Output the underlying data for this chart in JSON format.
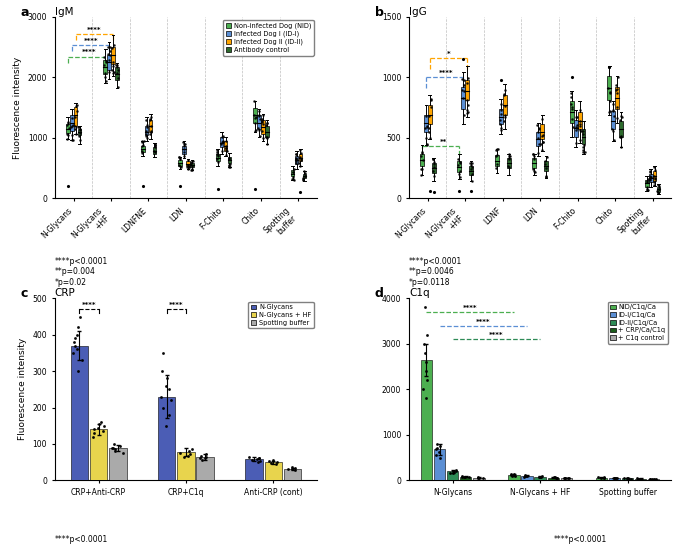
{
  "panel_a": {
    "title": "IgM",
    "ylabel": "Fluorescence intensity",
    "ylim": [
      0,
      3000
    ],
    "yticks": [
      0,
      1000,
      2000,
      3000
    ],
    "categories": [
      "N-Glycans",
      "N-Glycans\n+HF",
      "LDNFNE",
      "LDN",
      "F-Chito",
      "Chito",
      "Spotting\nbuffer"
    ],
    "keys": [
      "N-Glycans",
      "N-Glycans+HF",
      "LDNFNE",
      "LDN",
      "F-Chito",
      "Chito",
      "Spotting buffer"
    ],
    "box_data": {
      "N-Glycans": {
        "NID": {
          "q1": 1080,
          "med": 1150,
          "q3": 1230,
          "whislo": 980,
          "whishi": 1340,
          "fliers": [
            200
          ]
        },
        "IDI": {
          "q1": 1120,
          "med": 1250,
          "q3": 1370,
          "whislo": 960,
          "whishi": 1470,
          "fliers": []
        },
        "IDII": {
          "q1": 1200,
          "med": 1380,
          "q3": 1500,
          "whislo": 1060,
          "whishi": 1580,
          "fliers": []
        },
        "AC": {
          "q1": 1040,
          "med": 1090,
          "q3": 1140,
          "whislo": 900,
          "whishi": 1190,
          "fliers": []
        }
      },
      "N-Glycans+HF": {
        "NID": {
          "q1": 2060,
          "med": 2160,
          "q3": 2280,
          "whislo": 1900,
          "whishi": 2460,
          "fliers": []
        },
        "IDI": {
          "q1": 2120,
          "med": 2250,
          "q3": 2370,
          "whislo": 1970,
          "whishi": 2580,
          "fliers": []
        },
        "IDII": {
          "q1": 2220,
          "med": 2360,
          "q3": 2490,
          "whislo": 2020,
          "whishi": 2700,
          "fliers": []
        },
        "AC": {
          "q1": 1960,
          "med": 2060,
          "q3": 2160,
          "whislo": 1820,
          "whishi": 2240,
          "fliers": []
        }
      },
      "LDNFNE": {
        "NID": {
          "q1": 770,
          "med": 820,
          "q3": 870,
          "whislo": 700,
          "whishi": 940,
          "fliers": [
            200
          ]
        },
        "IDI": {
          "q1": 1040,
          "med": 1100,
          "q3": 1190,
          "whislo": 950,
          "whishi": 1340,
          "fliers": []
        },
        "IDII": {
          "q1": 1090,
          "med": 1190,
          "q3": 1290,
          "whislo": 980,
          "whishi": 1390,
          "fliers": []
        },
        "AC": {
          "q1": 740,
          "med": 790,
          "q3": 840,
          "whislo": 680,
          "whishi": 910,
          "fliers": []
        }
      },
      "LDN": {
        "NID": {
          "q1": 540,
          "med": 590,
          "q3": 640,
          "whislo": 490,
          "whishi": 690,
          "fliers": [
            200
          ]
        },
        "IDI": {
          "q1": 740,
          "med": 810,
          "q3": 870,
          "whislo": 670,
          "whishi": 940,
          "fliers": []
        },
        "IDII": {
          "q1": 540,
          "med": 570,
          "q3": 610,
          "whislo": 480,
          "whishi": 650,
          "fliers": []
        },
        "AC": {
          "q1": 520,
          "med": 550,
          "q3": 590,
          "whislo": 470,
          "whishi": 630,
          "fliers": []
        }
      },
      "F-Chito": {
        "NID": {
          "q1": 610,
          "med": 670,
          "q3": 740,
          "whislo": 540,
          "whishi": 810,
          "fliers": [
            150
          ]
        },
        "IDI": {
          "q1": 840,
          "med": 920,
          "q3": 1010,
          "whislo": 740,
          "whishi": 1090,
          "fliers": []
        },
        "IDII": {
          "q1": 790,
          "med": 860,
          "q3": 940,
          "whislo": 700,
          "whishi": 1010,
          "fliers": []
        },
        "AC": {
          "q1": 580,
          "med": 630,
          "q3": 690,
          "whislo": 510,
          "whishi": 750,
          "fliers": []
        }
      },
      "Chito": {
        "NID": {
          "q1": 1240,
          "med": 1370,
          "q3": 1490,
          "whislo": 1090,
          "whishi": 1610,
          "fliers": [
            150
          ]
        },
        "IDI": {
          "q1": 1140,
          "med": 1240,
          "q3": 1370,
          "whislo": 1010,
          "whishi": 1470,
          "fliers": []
        },
        "IDII": {
          "q1": 1070,
          "med": 1170,
          "q3": 1290,
          "whislo": 950,
          "whishi": 1390,
          "fliers": []
        },
        "AC": {
          "q1": 1010,
          "med": 1090,
          "q3": 1190,
          "whislo": 890,
          "whishi": 1290,
          "fliers": []
        }
      },
      "Spotting buffer": {
        "NID": {
          "q1": 370,
          "med": 410,
          "q3": 470,
          "whislo": 300,
          "whishi": 530,
          "fliers": []
        },
        "IDI": {
          "q1": 570,
          "med": 630,
          "q3": 700,
          "whislo": 490,
          "whishi": 780,
          "fliers": []
        },
        "IDII": {
          "q1": 610,
          "med": 670,
          "q3": 740,
          "whislo": 530,
          "whishi": 810,
          "fliers": [
            100
          ]
        },
        "AC": {
          "q1": 340,
          "med": 370,
          "q3": 410,
          "whislo": 280,
          "whishi": 450,
          "fliers": []
        }
      }
    }
  },
  "panel_b": {
    "title": "IgG",
    "ylabel": "",
    "ylim": [
      0,
      1500
    ],
    "yticks": [
      0,
      500,
      1000,
      1500
    ],
    "categories": [
      "N-Glycans",
      "N-Glycans\n+HF",
      "LDNF",
      "LDN",
      "F-Chito",
      "Chito",
      "Spotting\nbuffer"
    ],
    "keys": [
      "N-Glycans",
      "N-Glycans+HF",
      "LDNF",
      "LDN",
      "F-Chito",
      "Chito",
      "Spotting buffer"
    ],
    "box_data": {
      "N-Glycans": {
        "NID": {
          "q1": 270,
          "med": 320,
          "q3": 370,
          "whislo": 190,
          "whishi": 440,
          "fliers": []
        },
        "IDI": {
          "q1": 550,
          "med": 620,
          "q3": 690,
          "whislo": 440,
          "whishi": 770,
          "fliers": []
        },
        "IDII": {
          "q1": 610,
          "med": 690,
          "q3": 770,
          "whislo": 490,
          "whishi": 850,
          "fliers": [
            60
          ]
        },
        "AC": {
          "q1": 210,
          "med": 250,
          "q3": 290,
          "whislo": 140,
          "whishi": 330,
          "fliers": [
            50
          ]
        }
      },
      "N-Glycans+HF": {
        "NID": {
          "q1": 220,
          "med": 260,
          "q3": 310,
          "whislo": 160,
          "whishi": 370,
          "fliers": [
            60
          ]
        },
        "IDI": {
          "q1": 740,
          "med": 830,
          "q3": 920,
          "whislo": 610,
          "whishi": 1040,
          "fliers": [
            1150
          ]
        },
        "IDII": {
          "q1": 810,
          "med": 890,
          "q3": 980,
          "whislo": 670,
          "whishi": 1090,
          "fliers": []
        },
        "AC": {
          "q1": 190,
          "med": 230,
          "q3": 270,
          "whislo": 140,
          "whishi": 310,
          "fliers": [
            60
          ]
        }
      },
      "LDNF": {
        "NID": {
          "q1": 270,
          "med": 310,
          "q3": 360,
          "whislo": 210,
          "whishi": 410,
          "fliers": []
        },
        "IDI": {
          "q1": 610,
          "med": 670,
          "q3": 740,
          "whislo": 530,
          "whishi": 820,
          "fliers": [
            980
          ]
        },
        "IDII": {
          "q1": 690,
          "med": 770,
          "q3": 850,
          "whislo": 570,
          "whishi": 940,
          "fliers": []
        },
        "AC": {
          "q1": 250,
          "med": 290,
          "q3": 330,
          "whislo": 190,
          "whishi": 370,
          "fliers": []
        }
      },
      "LDN": {
        "NID": {
          "q1": 250,
          "med": 290,
          "q3": 330,
          "whislo": 190,
          "whishi": 370,
          "fliers": []
        },
        "IDI": {
          "q1": 430,
          "med": 490,
          "q3": 550,
          "whislo": 350,
          "whishi": 620,
          "fliers": []
        },
        "IDII": {
          "q1": 490,
          "med": 550,
          "q3": 610,
          "whislo": 390,
          "whishi": 690,
          "fliers": []
        },
        "AC": {
          "q1": 230,
          "med": 270,
          "q3": 310,
          "whislo": 170,
          "whishi": 350,
          "fliers": []
        }
      },
      "F-Chito": {
        "NID": {
          "q1": 620,
          "med": 710,
          "q3": 800,
          "whislo": 510,
          "whishi": 890,
          "fliers": [
            1000
          ]
        },
        "IDI": {
          "q1": 510,
          "med": 580,
          "q3": 650,
          "whislo": 420,
          "whishi": 730,
          "fliers": []
        },
        "IDII": {
          "q1": 570,
          "med": 640,
          "q3": 710,
          "whislo": 460,
          "whishi": 800,
          "fliers": []
        },
        "AC": {
          "q1": 450,
          "med": 510,
          "q3": 570,
          "whislo": 370,
          "whishi": 640,
          "fliers": []
        }
      },
      "Chito": {
        "NID": {
          "q1": 810,
          "med": 910,
          "q3": 1010,
          "whislo": 690,
          "whishi": 1090,
          "fliers": [
            1080
          ]
        },
        "IDI": {
          "q1": 570,
          "med": 640,
          "q3": 720,
          "whislo": 470,
          "whishi": 800,
          "fliers": []
        },
        "IDII": {
          "q1": 740,
          "med": 830,
          "q3": 920,
          "whislo": 620,
          "whishi": 1010,
          "fliers": []
        },
        "AC": {
          "q1": 510,
          "med": 570,
          "q3": 640,
          "whislo": 420,
          "whishi": 710,
          "fliers": []
        }
      },
      "Spotting buffer": {
        "NID": {
          "q1": 95,
          "med": 125,
          "q3": 155,
          "whislo": 65,
          "whishi": 185,
          "fliers": []
        },
        "IDI": {
          "q1": 135,
          "med": 165,
          "q3": 205,
          "whislo": 95,
          "whishi": 245,
          "fliers": []
        },
        "IDII": {
          "q1": 145,
          "med": 185,
          "q3": 225,
          "whislo": 105,
          "whishi": 265,
          "fliers": []
        },
        "AC": {
          "q1": 55,
          "med": 75,
          "q3": 95,
          "whislo": 35,
          "whishi": 115,
          "fliers": []
        }
      }
    }
  },
  "panel_c": {
    "title": "CRP",
    "ylabel": "Fluorescence intensity",
    "ylim": [
      0,
      500
    ],
    "yticks": [
      0,
      100,
      200,
      300,
      400,
      500
    ],
    "categories": [
      "CRP+Anti-CRP",
      "CRP+C1q",
      "Anti-CRP (cont)"
    ],
    "series": [
      "N-Glycans",
      "N-Glycans + HF",
      "Spotting buffer"
    ],
    "colors": [
      "#4B5DB5",
      "#E8D44D",
      "#AAAAAA"
    ],
    "bar_means": {
      "CRP+Anti-CRP": [
        370,
        140,
        88
      ],
      "CRP+C1q": [
        230,
        78,
        65
      ],
      "Anti-CRP (cont)": [
        58,
        50,
        32
      ]
    },
    "bar_errors": {
      "CRP+Anti-CRP": [
        40,
        15,
        8
      ],
      "CRP+C1q": [
        60,
        12,
        8
      ],
      "Anti-CRP (cont)": [
        5,
        4,
        3
      ]
    },
    "dot_data": {
      "CRP+Anti-CRP": {
        "N-Glycans": [
          300,
          330,
          350,
          360,
          370,
          380,
          390,
          400,
          420,
          450
        ],
        "N-Glycans + HF": [
          120,
          130,
          135,
          140,
          145,
          150,
          155,
          160
        ],
        "Spotting buffer": [
          75,
          80,
          85,
          88,
          90,
          95,
          100
        ]
      },
      "CRP+C1q": {
        "N-Glycans": [
          150,
          180,
          200,
          220,
          230,
          250,
          260,
          280,
          300,
          350
        ],
        "N-Glycans + HF": [
          65,
          68,
          72,
          75,
          80,
          85
        ],
        "Spotting buffer": [
          55,
          60,
          62,
          65,
          68,
          72
        ]
      },
      "Anti-CRP (cont)": {
        "N-Glycans": [
          50,
          52,
          55,
          58,
          60,
          62,
          65
        ],
        "N-Glycans + HF": [
          45,
          47,
          50,
          52,
          55
        ],
        "Spotting buffer": [
          28,
          30,
          32,
          34,
          36
        ]
      }
    }
  },
  "panel_d": {
    "title": "C1q",
    "ylabel": "",
    "ylim": [
      0,
      4000
    ],
    "yticks": [
      0,
      1000,
      2000,
      3000,
      4000
    ],
    "categories": [
      "N-Glycans",
      "N-Glycans + HF",
      "Spotting buffer"
    ],
    "series": [
      "NID/C1q/Ca",
      "ID-I/C1q/Ca",
      "ID-II/C1q/Ca",
      "+ CRP/Ca/C1q",
      "+ C1q control"
    ],
    "colors": [
      "#4CAF50",
      "#5B8FD4",
      "#2E8B57",
      "#1a5c1a",
      "#AAAAAA"
    ],
    "bar_means": {
      "N-Glycans": [
        2650,
        680,
        200,
        80,
        60
      ],
      "N-Glycans + HF": [
        120,
        100,
        80,
        60,
        50
      ],
      "Spotting buffer": [
        60,
        50,
        40,
        35,
        30
      ]
    },
    "bar_errors": {
      "N-Glycans": [
        350,
        120,
        30,
        10,
        8
      ],
      "N-Glycans + HF": [
        20,
        15,
        10,
        8,
        6
      ],
      "Spotting buffer": [
        8,
        6,
        5,
        4,
        3
      ]
    },
    "dot_data": {
      "N-Glycans": {
        "NID/C1q/Ca": [
          1800,
          2000,
          2200,
          2400,
          2600,
          2800,
          3000,
          3200,
          3800
        ],
        "ID-I/C1q/Ca": [
          500,
          550,
          620,
          680,
          720,
          760,
          800
        ],
        "ID-II/C1q/Ca": [
          160,
          170,
          185,
          200,
          210,
          220
        ],
        "+ CRP/Ca/C1q": [
          65,
          70,
          75,
          80,
          85
        ],
        "+ C1q control": [
          50,
          55,
          60,
          65
        ]
      },
      "N-Glycans + HF": {
        "NID/C1q/Ca": [
          90,
          100,
          110,
          120,
          130,
          140
        ],
        "ID-I/C1q/Ca": [
          80,
          90,
          95,
          100,
          110
        ],
        "ID-II/C1q/Ca": [
          65,
          70,
          75,
          80,
          85
        ],
        "+ CRP/Ca/C1q": [
          50,
          55,
          58,
          62,
          65
        ],
        "+ C1q control": [
          42,
          45,
          48,
          52,
          55
        ]
      },
      "Spotting buffer": {
        "NID/C1q/Ca": [
          50,
          55,
          60,
          65,
          70
        ],
        "ID-I/C1q/Ca": [
          42,
          45,
          48,
          52,
          55
        ],
        "ID-II/C1q/Ca": [
          35,
          38,
          40,
          42,
          45
        ],
        "+ CRP/Ca/C1q": [
          30,
          32,
          35,
          38,
          40
        ],
        "+ C1q control": [
          25,
          28,
          30,
          32,
          35
        ]
      }
    }
  },
  "legend_a": {
    "labels": [
      "Non-infected Dog (NID)",
      "Infected Dog I (ID-I)",
      "Infected Dog II (ID-II)",
      "Antibody control"
    ],
    "colors": [
      "#4CAF50",
      "#5B8FD4",
      "#FFA500",
      "#2E6B2E"
    ]
  }
}
